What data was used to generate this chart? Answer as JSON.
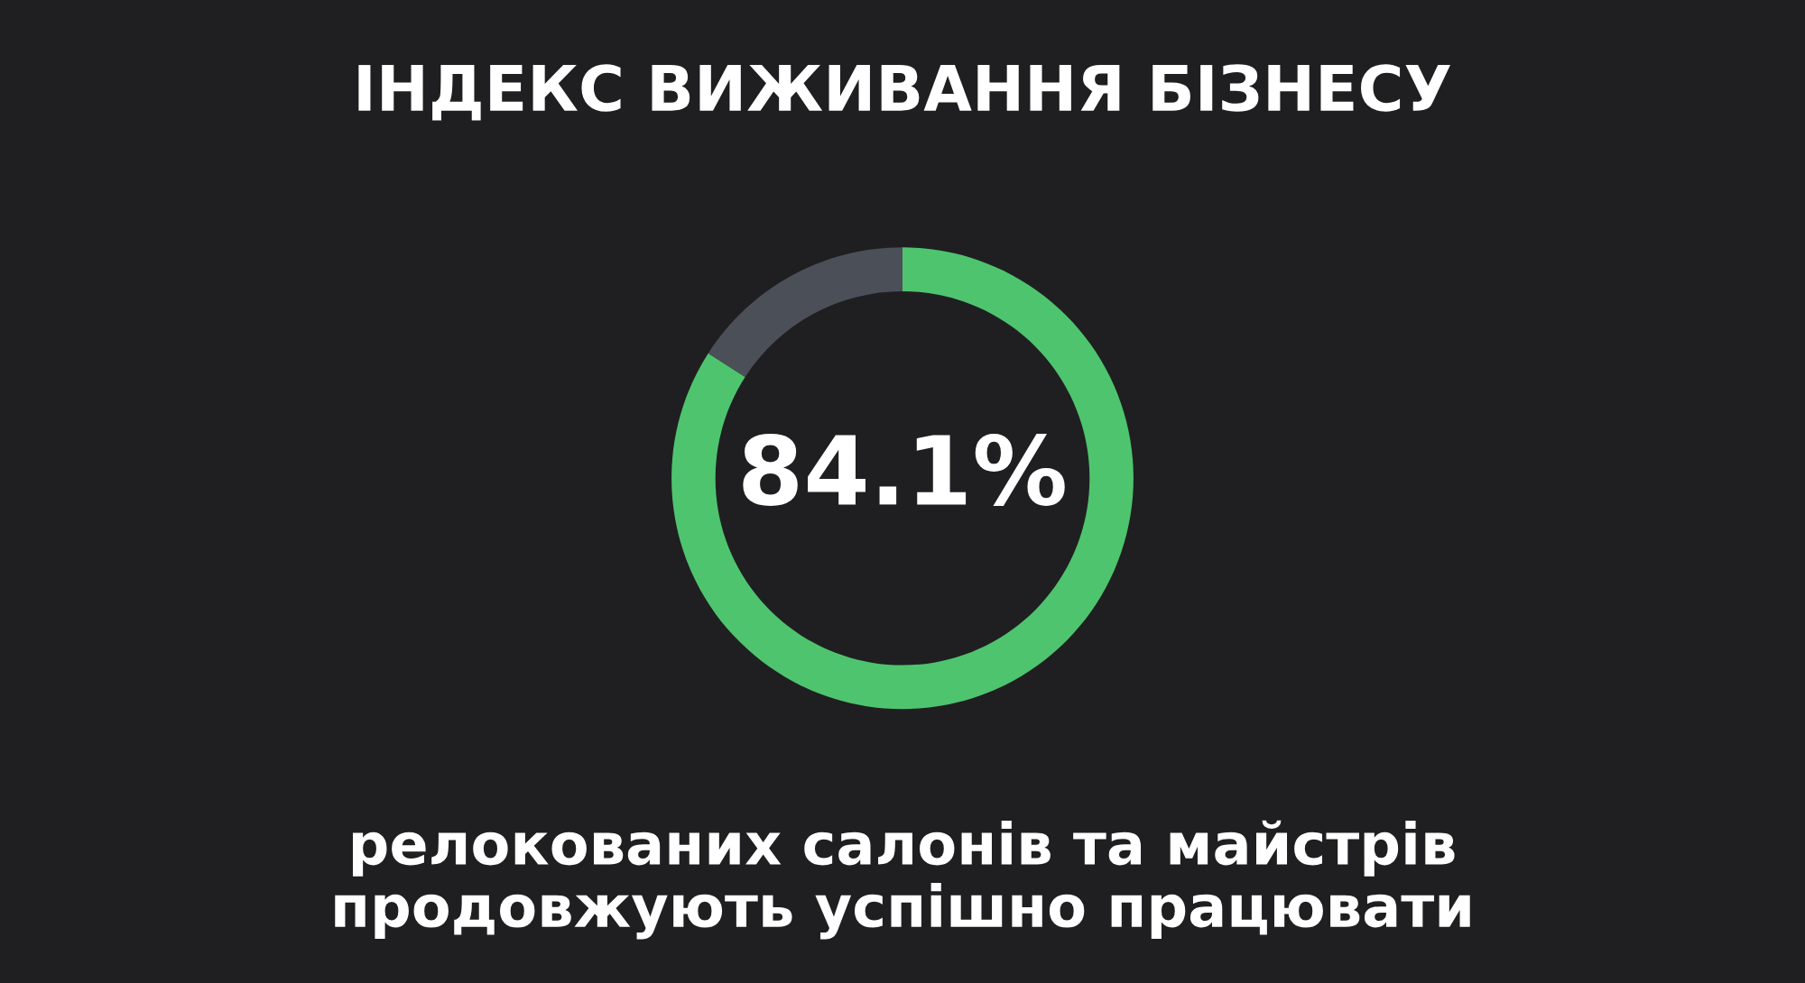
{
  "chart_data": {
    "type": "donut",
    "title": "ІНДЕКС ВИЖИВАННЯ БІЗНЕСУ",
    "categories": [
      null,
      null
    ],
    "values": [
      84.1,
      15.9
    ],
    "colors": [
      "#4ec46e",
      "#4b5058"
    ],
    "value_labels": [
      "84.1%",
      null
    ],
    "annotations": [
      "релокованих салонів та майстрів\nпродовжують успішно працювати"
    ]
  }
}
